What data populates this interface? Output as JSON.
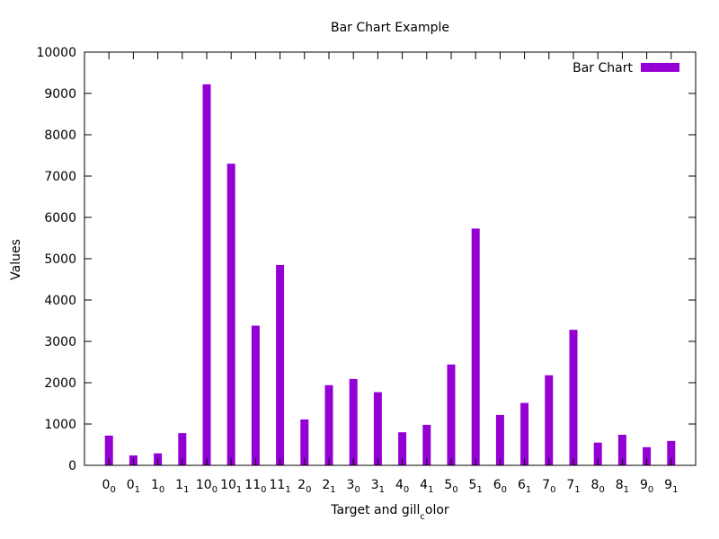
{
  "chart_data": {
    "type": "bar",
    "title": "Bar Chart Example",
    "xlabel": "Target and gill",
    "xlabel_subscript": "c",
    "xlabel_suffix": "olor",
    "ylabel": "Values",
    "ylim": [
      0,
      10000
    ],
    "yticks": [
      "0",
      "1000",
      "2000",
      "3000",
      "4000",
      "5000",
      "6000",
      "7000",
      "8000",
      "9000",
      "10000"
    ],
    "grid": false,
    "legend_position": "top-right",
    "bar_color": "#9400d3",
    "categories": [
      {
        "main": "0",
        "sub": "0"
      },
      {
        "main": "0",
        "sub": "1"
      },
      {
        "main": "1",
        "sub": "0"
      },
      {
        "main": "1",
        "sub": "1"
      },
      {
        "main": "10",
        "sub": "0"
      },
      {
        "main": "10",
        "sub": "1"
      },
      {
        "main": "11",
        "sub": "0"
      },
      {
        "main": "11",
        "sub": "1"
      },
      {
        "main": "2",
        "sub": "0"
      },
      {
        "main": "2",
        "sub": "1"
      },
      {
        "main": "3",
        "sub": "0"
      },
      {
        "main": "3",
        "sub": "1"
      },
      {
        "main": "4",
        "sub": "0"
      },
      {
        "main": "4",
        "sub": "1"
      },
      {
        "main": "5",
        "sub": "0"
      },
      {
        "main": "5",
        "sub": "1"
      },
      {
        "main": "6",
        "sub": "0"
      },
      {
        "main": "6",
        "sub": "1"
      },
      {
        "main": "7",
        "sub": "0"
      },
      {
        "main": "7",
        "sub": "1"
      },
      {
        "main": "8",
        "sub": "0"
      },
      {
        "main": "8",
        "sub": "1"
      },
      {
        "main": "9",
        "sub": "0"
      },
      {
        "main": "9",
        "sub": "1"
      }
    ],
    "series": [
      {
        "name": "Bar Chart",
        "values": [
          720,
          240,
          290,
          780,
          9220,
          7300,
          3380,
          4850,
          1110,
          1940,
          2090,
          1770,
          800,
          980,
          2440,
          5730,
          1220,
          1510,
          2180,
          3280,
          550,
          740,
          440,
          590
        ]
      }
    ]
  }
}
